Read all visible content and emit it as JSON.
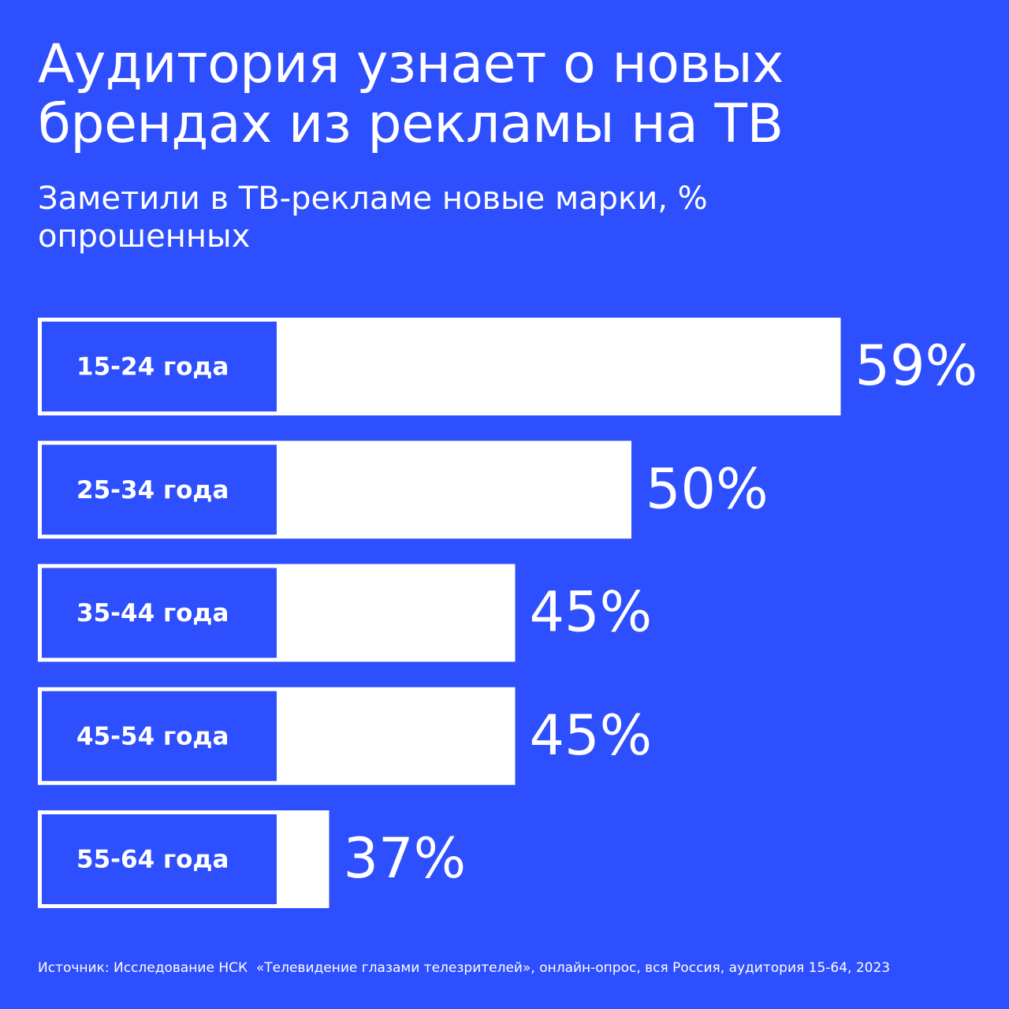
{
  "chart_data": {
    "type": "bar",
    "orientation": "horizontal",
    "title": "Аудитория узнает о новых брендах из рекламы на ТВ",
    "subtitle": "Заметили в ТВ-рекламе новые марки, % опрошенных",
    "categories": [
      "15-24 года",
      "25-34 года",
      "35-44 года",
      "45-54 года",
      "55-64 года"
    ],
    "values": [
      59,
      50,
      45,
      45,
      37
    ],
    "value_labels": [
      "59%",
      "50%",
      "45%",
      "45%",
      "37%"
    ],
    "color": "#ffffff",
    "source": "Источник: Исследование НСК  «Телевидение глазами телезрителей», онлайн-опрос, вся Россия, аудитория 15-64, 2023"
  }
}
